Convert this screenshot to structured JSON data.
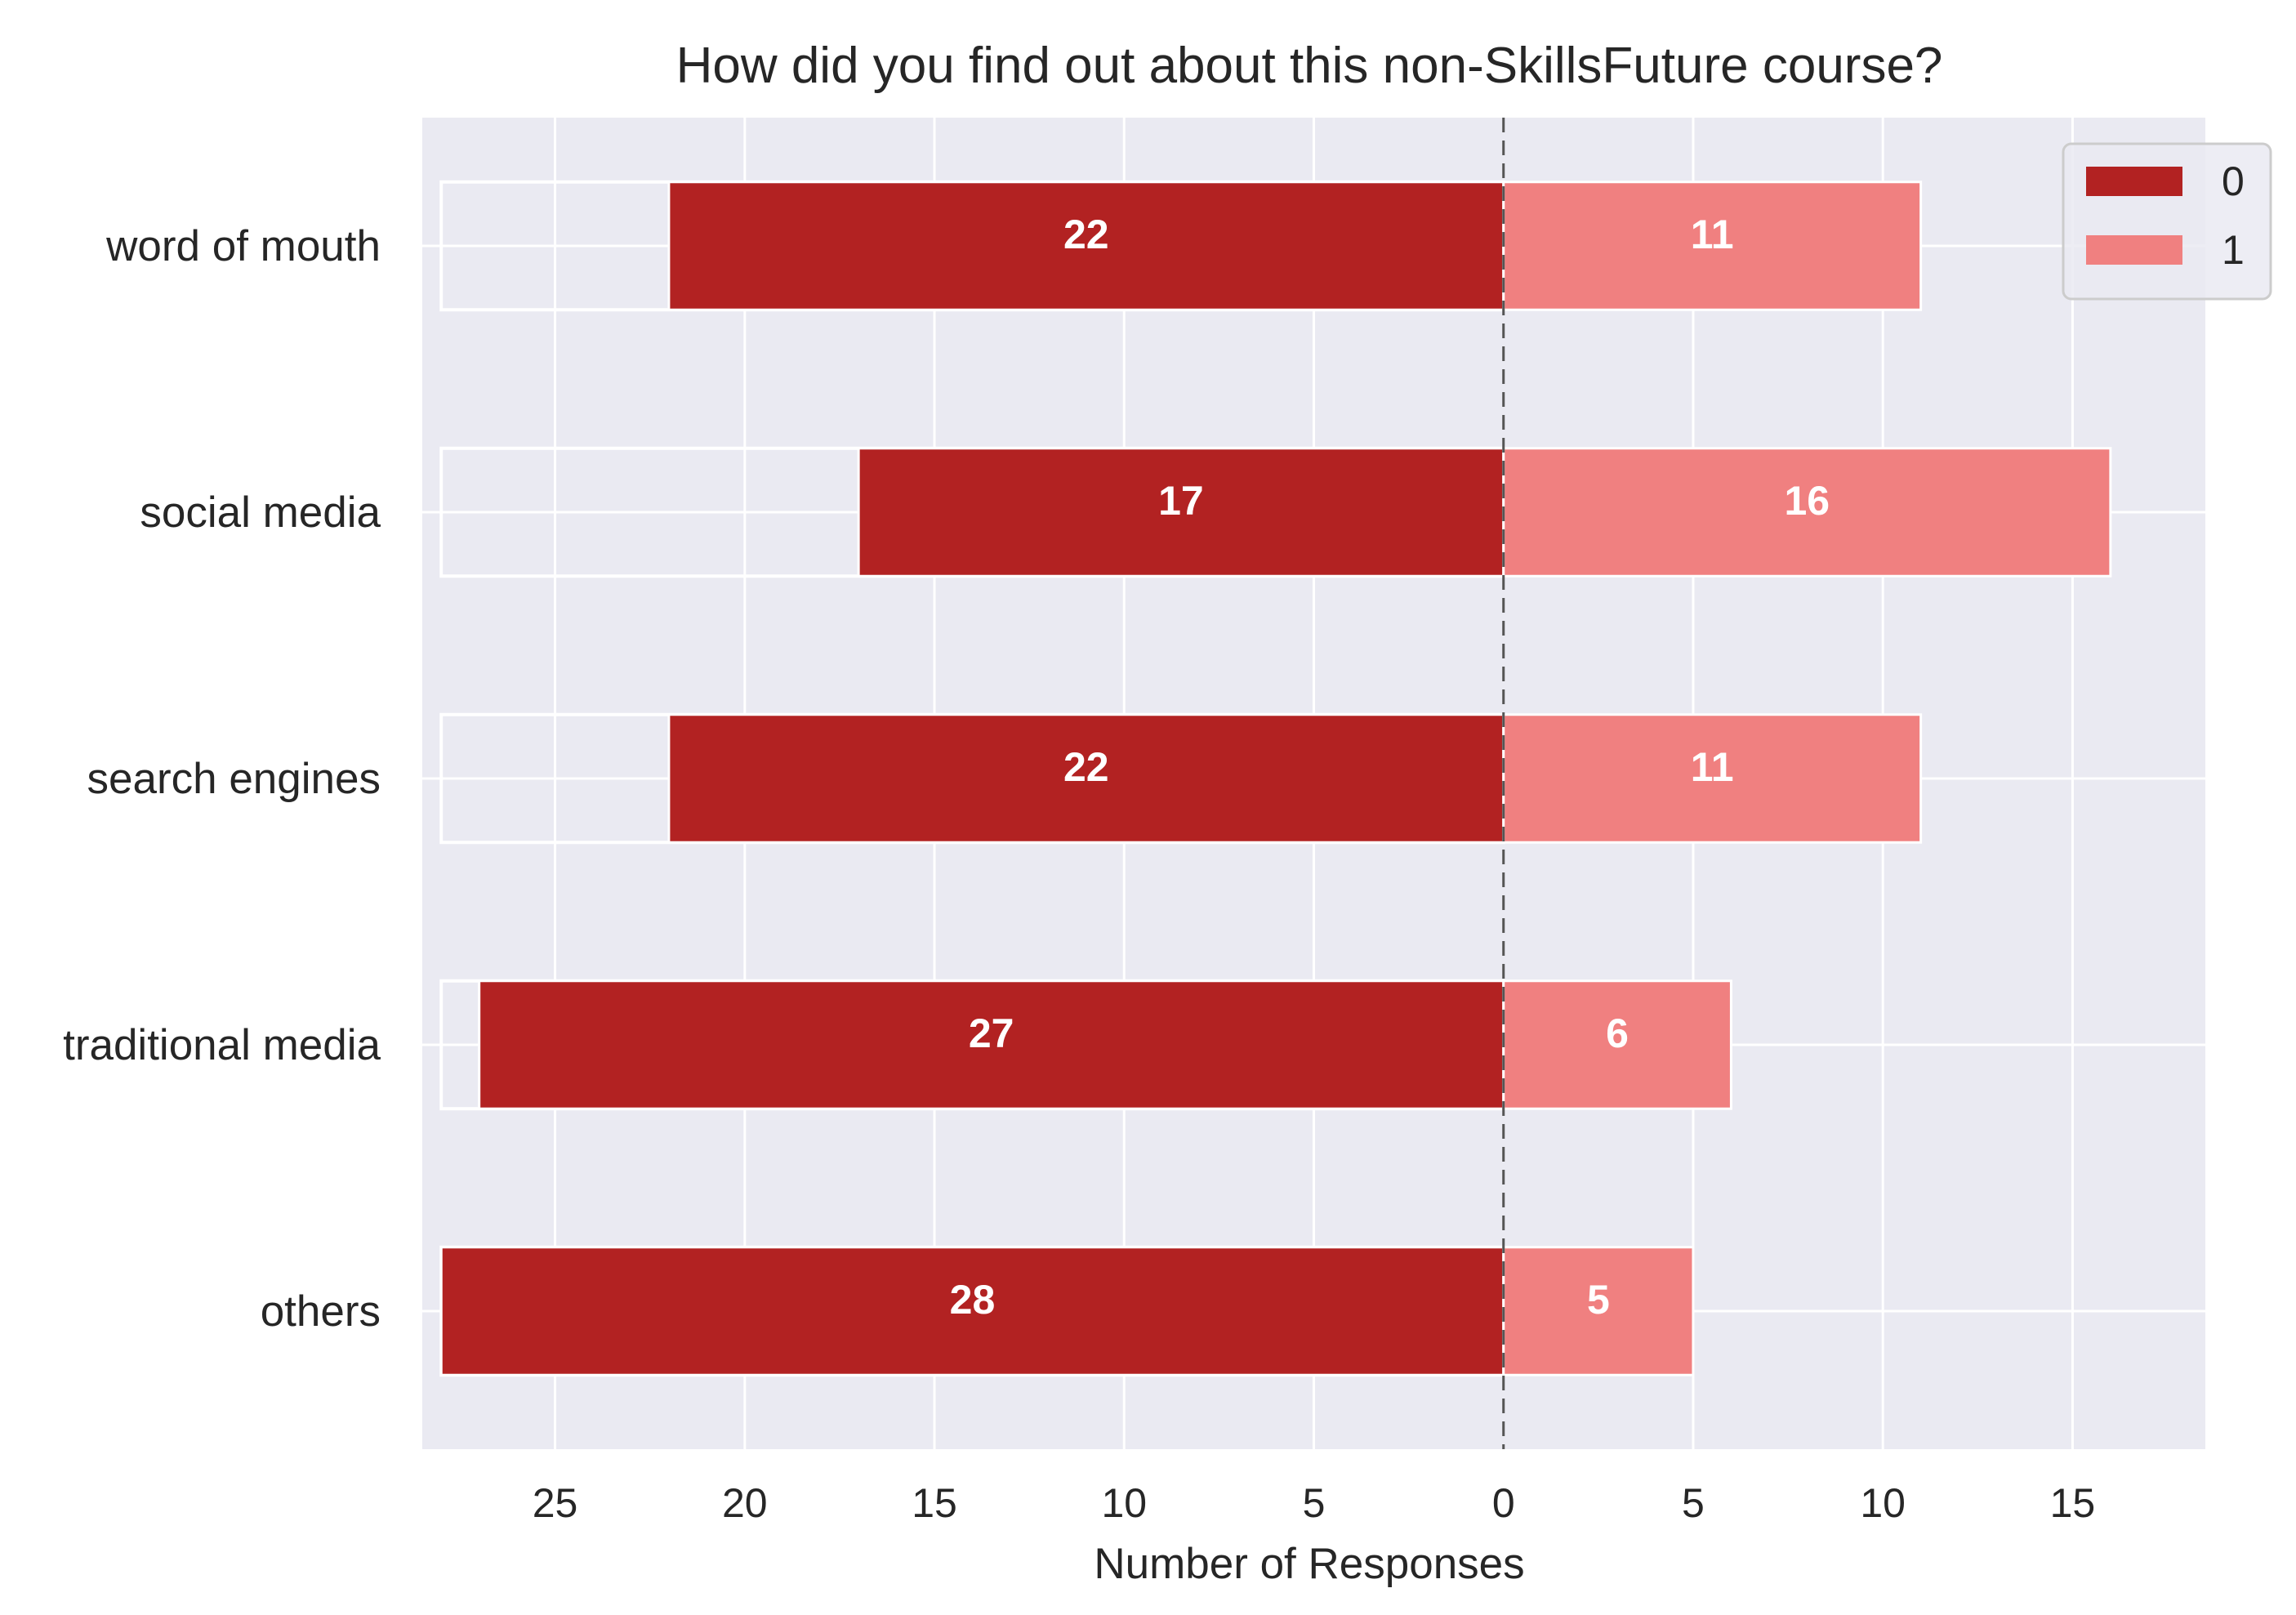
{
  "chart_data": {
    "type": "bar",
    "orientation": "horizontal-diverging",
    "title": "How did you find out about this non-SkillsFuture course?",
    "xlabel": "Number of Responses",
    "ylabel": "",
    "categories": [
      "word of mouth",
      "social media",
      "search engines",
      "traditional media",
      "others"
    ],
    "series": [
      {
        "name": "0",
        "direction": "left",
        "color": "#b22222",
        "values": [
          22,
          17,
          22,
          27,
          28
        ]
      },
      {
        "name": "1",
        "direction": "right",
        "color": "#f08080",
        "values": [
          11,
          16,
          11,
          6,
          5
        ]
      }
    ],
    "xlim": [
      -28.5,
      18.5
    ],
    "xticks": [
      -25,
      -20,
      -15,
      -10,
      -5,
      0,
      5,
      10,
      15
    ],
    "xtick_labels": [
      "25",
      "20",
      "15",
      "10",
      "5",
      "0",
      "5",
      "10",
      "15"
    ],
    "total_outline": 28,
    "grid": true,
    "zero_line": "dashed",
    "legend_position": "top-right",
    "background_color": "#eaeaf2",
    "grid_color": "#ffffff"
  }
}
